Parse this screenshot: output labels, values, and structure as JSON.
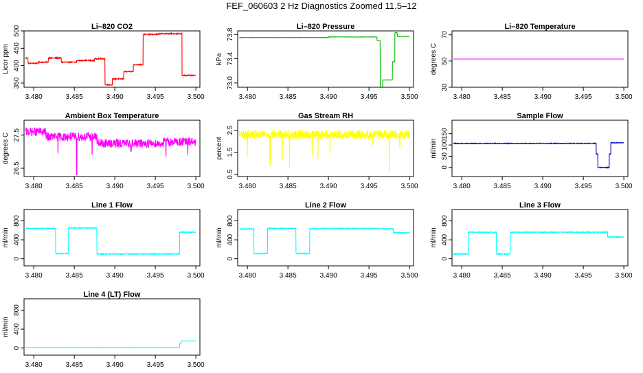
{
  "page_title": "FEF_060603  2 Hz Diagnostics Zoomed 11.5–12",
  "chart_data": [
    {
      "type": "line",
      "title": "Li–820 CO2",
      "ylabel": "Licor ppm",
      "color": "#ff0000",
      "xlim": [
        3.4788,
        3.5005
      ],
      "ylim": [
        338,
        500
      ],
      "x_ticks": [
        "3.480",
        "3.485",
        "3.490",
        "3.495",
        "3.500"
      ],
      "y_ticks": [
        "350",
        "400",
        "450",
        "500"
      ],
      "noise": 1.5,
      "segments": [
        {
          "x0": 3.479,
          "x1": 3.4793,
          "y": 422
        },
        {
          "x0": 3.4793,
          "x1": 3.4806,
          "y": 407
        },
        {
          "x0": 3.4806,
          "x1": 3.4818,
          "y": 410
        },
        {
          "x0": 3.4818,
          "x1": 3.4834,
          "y": 422
        },
        {
          "x0": 3.4834,
          "x1": 3.4853,
          "y": 410
        },
        {
          "x0": 3.4853,
          "x1": 3.4875,
          "y": 415
        },
        {
          "x0": 3.4875,
          "x1": 3.4888,
          "y": 420
        },
        {
          "x0": 3.4888,
          "x1": 3.4897,
          "y": 345
        },
        {
          "x0": 3.4897,
          "x1": 3.4911,
          "y": 362
        },
        {
          "x0": 3.4911,
          "x1": 3.4923,
          "y": 383
        },
        {
          "x0": 3.4923,
          "x1": 3.4935,
          "y": 403
        },
        {
          "x0": 3.4935,
          "x1": 3.4954,
          "y": 490
        },
        {
          "x0": 3.4954,
          "x1": 3.4983,
          "y": 492
        },
        {
          "x0": 3.4983,
          "x1": 3.5,
          "y": 372
        }
      ]
    },
    {
      "type": "line",
      "title": "Li–820 Pressure",
      "ylabel": "kPa",
      "color": "#00bb00",
      "xlim": [
        3.4788,
        3.5005
      ],
      "ylim": [
        72.93,
        73.86
      ],
      "x_ticks": [
        "3.480",
        "3.485",
        "3.490",
        "3.495",
        "3.500"
      ],
      "y_ticks": [
        "73.0",
        "73.4",
        "73.8"
      ],
      "noise": 0.003,
      "segments": [
        {
          "x0": 3.479,
          "x1": 3.49,
          "y": 73.75
        },
        {
          "x0": 3.49,
          "x1": 3.496,
          "y": 73.76
        },
        {
          "x0": 3.496,
          "x1": 3.4964,
          "y": 73.7
        },
        {
          "x0": 3.4964,
          "x1": 3.4967,
          "y": 72.93
        },
        {
          "x0": 3.4967,
          "x1": 3.4979,
          "y": 73.05
        },
        {
          "x0": 3.4979,
          "x1": 3.4982,
          "y": 73.35
        },
        {
          "x0": 3.4982,
          "x1": 3.4985,
          "y": 73.83
        },
        {
          "x0": 3.4985,
          "x1": 3.5,
          "y": 73.77
        }
      ]
    },
    {
      "type": "line",
      "title": "Li–820 Temperature",
      "ylabel": "degrees C",
      "color": "#ff00ff",
      "xlim": [
        3.4788,
        3.5005
      ],
      "ylim": [
        30,
        73
      ],
      "x_ticks": [
        "3.480",
        "3.485",
        "3.490",
        "3.495",
        "3.500"
      ],
      "y_ticks": [
        "30",
        "50",
        "70"
      ],
      "noise": 0,
      "segments": [
        {
          "x0": 3.479,
          "x1": 3.5,
          "y": 51.5
        }
      ]
    },
    {
      "type": "line",
      "title": "Ambient Box Temperature",
      "ylabel": "degrees C",
      "color": "#ff00ff",
      "xlim": [
        3.4788,
        3.5005
      ],
      "ylim": [
        26.25,
        27.95
      ],
      "x_ticks": [
        "3.480",
        "3.485",
        "3.490",
        "3.495",
        "3.500"
      ],
      "y_ticks": [
        "26.5",
        "27.5"
      ],
      "noise": 0.13,
      "segments": [
        {
          "x0": 3.479,
          "x1": 3.4815,
          "y": 27.6
        },
        {
          "x0": 3.4815,
          "x1": 3.4878,
          "y": 27.45
        },
        {
          "x0": 3.4878,
          "x1": 3.496,
          "y": 27.25
        },
        {
          "x0": 3.496,
          "x1": 3.5,
          "y": 27.3
        }
      ],
      "spikes": [
        {
          "x": 3.4853,
          "y": 26.3
        },
        {
          "x": 3.483,
          "y": 26.95
        },
        {
          "x": 3.4872,
          "y": 26.9
        },
        {
          "x": 3.492,
          "y": 27.0
        },
        {
          "x": 3.4963,
          "y": 26.85
        },
        {
          "x": 3.499,
          "y": 26.9
        }
      ]
    },
    {
      "type": "line",
      "title": "Gas Stream RH",
      "ylabel": "percent",
      "color": "#ffff00",
      "xlim": [
        3.4788,
        3.5005
      ],
      "ylim": [
        0.4,
        2.95
      ],
      "x_ticks": [
        "3.480",
        "3.485",
        "3.490",
        "3.495",
        "3.500"
      ],
      "y_ticks": [
        "0.5",
        "1.5",
        "2.5"
      ],
      "noise": 0.2,
      "segments": [
        {
          "x0": 3.479,
          "x1": 3.5,
          "y": 2.3
        }
      ],
      "spikes": [
        {
          "x": 3.48,
          "y": 1.3
        },
        {
          "x": 3.4828,
          "y": 0.9
        },
        {
          "x": 3.4843,
          "y": 1.1
        },
        {
          "x": 3.4852,
          "y": 0.8
        },
        {
          "x": 3.488,
          "y": 1.3
        },
        {
          "x": 3.4887,
          "y": 1.15
        },
        {
          "x": 3.4902,
          "y": 1.5
        },
        {
          "x": 3.4955,
          "y": 1.8
        },
        {
          "x": 3.4975,
          "y": 0.6
        },
        {
          "x": 3.4988,
          "y": 1.7
        }
      ]
    },
    {
      "type": "line",
      "title": "Sample Flow",
      "ylabel": "ml/min",
      "color": "#0000cc",
      "xlim": [
        3.4788,
        3.5005
      ],
      "ylim": [
        -40,
        210
      ],
      "x_ticks": [
        "3.480",
        "3.485",
        "3.490",
        "3.495",
        "3.500"
      ],
      "y_ticks": [
        "0",
        "50",
        "100",
        "150"
      ],
      "noise": 1.6,
      "segments": [
        {
          "x0": 3.479,
          "x1": 3.4966,
          "y": 107
        },
        {
          "x0": 3.4966,
          "x1": 3.4968,
          "y": 60
        },
        {
          "x0": 3.4968,
          "x1": 3.4982,
          "y": 0
        },
        {
          "x0": 3.4982,
          "x1": 3.4984,
          "y": 60
        },
        {
          "x0": 3.4984,
          "x1": 3.5,
          "y": 110
        }
      ]
    },
    {
      "type": "line",
      "title": "Line 1 Flow",
      "ylabel": "ml/min",
      "color": "#00ffff",
      "xlim": [
        3.4788,
        3.5005
      ],
      "ylim": [
        -150,
        1040
      ],
      "x_ticks": [
        "3.480",
        "3.485",
        "3.490",
        "3.495",
        "3.500"
      ],
      "y_ticks": [
        "0",
        "400",
        "800"
      ],
      "noise": 10,
      "segments": [
        {
          "x0": 3.479,
          "x1": 3.4827,
          "y": 640
        },
        {
          "x0": 3.4827,
          "x1": 3.4843,
          "y": 110
        },
        {
          "x0": 3.4843,
          "x1": 3.4878,
          "y": 650
        },
        {
          "x0": 3.4878,
          "x1": 3.498,
          "y": 100
        },
        {
          "x0": 3.498,
          "x1": 3.5,
          "y": 560
        }
      ]
    },
    {
      "type": "line",
      "title": "Line 2 Flow",
      "ylabel": "ml/min",
      "color": "#00ffff",
      "xlim": [
        3.4788,
        3.5005
      ],
      "ylim": [
        -150,
        1040
      ],
      "x_ticks": [
        "3.480",
        "3.485",
        "3.490",
        "3.495",
        "3.500"
      ],
      "y_ticks": [
        "0",
        "400",
        "800"
      ],
      "noise": 10,
      "segments": [
        {
          "x0": 3.479,
          "x1": 3.4808,
          "y": 630
        },
        {
          "x0": 3.4808,
          "x1": 3.4825,
          "y": 110
        },
        {
          "x0": 3.4825,
          "x1": 3.486,
          "y": 640
        },
        {
          "x0": 3.486,
          "x1": 3.4877,
          "y": 110
        },
        {
          "x0": 3.4877,
          "x1": 3.498,
          "y": 635
        },
        {
          "x0": 3.498,
          "x1": 3.5,
          "y": 550
        }
      ]
    },
    {
      "type": "line",
      "title": "Line 3 Flow",
      "ylabel": "ml/min",
      "color": "#00ffff",
      "xlim": [
        3.4788,
        3.5005
      ],
      "ylim": [
        -150,
        1040
      ],
      "x_ticks": [
        "3.480",
        "3.485",
        "3.490",
        "3.495",
        "3.500"
      ],
      "y_ticks": [
        "0",
        "400",
        "800"
      ],
      "noise": 10,
      "segments": [
        {
          "x0": 3.479,
          "x1": 3.4808,
          "y": 100
        },
        {
          "x0": 3.4808,
          "x1": 3.4843,
          "y": 560
        },
        {
          "x0": 3.4843,
          "x1": 3.486,
          "y": 100
        },
        {
          "x0": 3.486,
          "x1": 3.498,
          "y": 560
        },
        {
          "x0": 3.498,
          "x1": 3.5,
          "y": 460
        }
      ]
    },
    {
      "type": "line",
      "title": "Line 4 (LT) Flow",
      "ylabel": "ml/min",
      "color": "#00ffff",
      "xlim": [
        3.4788,
        3.5005
      ],
      "ylim": [
        -150,
        1040
      ],
      "x_ticks": [
        "3.480",
        "3.485",
        "3.490",
        "3.495",
        "3.500"
      ],
      "y_ticks": [
        "0",
        "400",
        "800"
      ],
      "noise": 2,
      "segments": [
        {
          "x0": 3.479,
          "x1": 3.498,
          "y": 10
        },
        {
          "x0": 3.498,
          "x1": 3.4982,
          "y": 100
        },
        {
          "x0": 3.4982,
          "x1": 3.5,
          "y": 150
        }
      ]
    }
  ]
}
